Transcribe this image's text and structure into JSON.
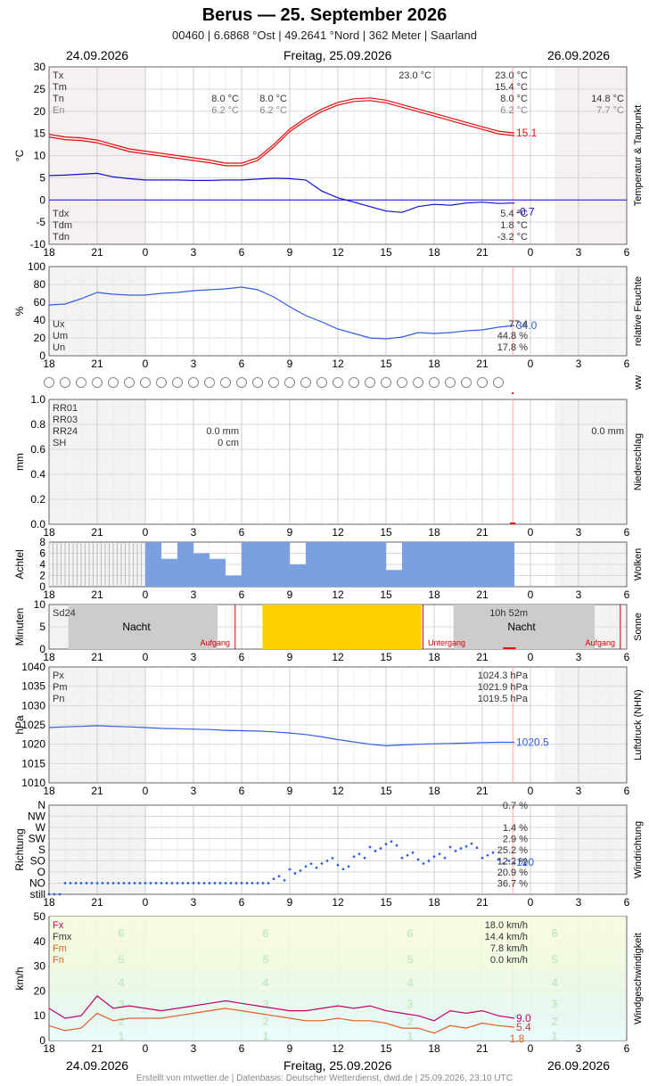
{
  "header": {
    "title": "Berus  —  25. September 2026",
    "subtitle": "00460  |  6.6868 °Ost  |  49.2641 °Nord  |  362 Meter  |  Saarland"
  },
  "dates": {
    "left": "24.09.2026",
    "center": "Freitag, 25.09.2026",
    "right": "26.09.2026"
  },
  "footer": "Erstellt von mtwetter.de | Datenbasis: Deutscher Wetterdienst, dwd.de | 25.09.2026, 23:10 UTC",
  "colors": {
    "temp": "#e01010",
    "dew": "#1010d0",
    "line": "#3060e0",
    "cloud": "#7aa0e0",
    "sun": "#ffd000",
    "fx": "#c0006a",
    "fm": "#e06020",
    "grid": "#dddddd"
  },
  "chart_data": [
    {
      "id": "temperature",
      "type": "line",
      "ylabel": "°C",
      "side_label": "Temperatur & Taupunkt",
      "ylim": [
        -10,
        30
      ],
      "yticks": [
        "30",
        "25",
        "20",
        "15",
        "10",
        "5",
        "0",
        "-5",
        "-10"
      ],
      "xticks": [
        "18",
        "21",
        "0",
        "3",
        "6",
        "9",
        "12",
        "15",
        "18",
        "21",
        "0",
        "3",
        "6"
      ],
      "x_hours": [
        18,
        19,
        20,
        21,
        22,
        23,
        0,
        1,
        2,
        3,
        4,
        5,
        6,
        7,
        8,
        9,
        10,
        11,
        12,
        13,
        14,
        15,
        16,
        17,
        18,
        19,
        20,
        21,
        22,
        23
      ],
      "series": [
        {
          "name": "T",
          "values": [
            14.8,
            14.2,
            14.0,
            13.5,
            12.5,
            11.5,
            11.0,
            10.5,
            10.0,
            9.5,
            9.0,
            8.3,
            8.3,
            9.5,
            12.5,
            16.0,
            18.5,
            20.5,
            22.0,
            22.8,
            23.0,
            22.5,
            21.5,
            20.5,
            19.5,
            18.5,
            17.5,
            16.5,
            15.5,
            15.1
          ]
        },
        {
          "name": "Td",
          "values": [
            5.5,
            5.6,
            5.8,
            6.0,
            5.2,
            4.8,
            4.5,
            4.5,
            4.5,
            4.4,
            4.4,
            4.5,
            4.5,
            4.7,
            4.9,
            4.8,
            4.5,
            2.0,
            0.5,
            -0.5,
            -1.5,
            -2.5,
            -2.8,
            -1.5,
            -1.0,
            -1.2,
            -0.7,
            -0.5,
            -0.8,
            -0.7
          ]
        }
      ],
      "current_labels": [
        "15.1",
        "-0.7"
      ],
      "stats_top": [
        {
          "label": "Tx",
          "v1": "",
          "v2": "",
          "v3": "23.0 °C",
          "v4": "23.0 °C",
          "v5": ""
        },
        {
          "label": "Tm",
          "v1": "",
          "v2": "",
          "v3": "",
          "v4": "15.4 °C",
          "v5": ""
        },
        {
          "label": "Tn",
          "v1": "8.0 °C",
          "v2": "8.0 °C",
          "v3": "",
          "v4": "8.0 °C",
          "v5": "14.8 °C"
        },
        {
          "label": "En",
          "v1": "6.2 °C",
          "v2": "6.2 °C",
          "v3": "",
          "v4": "6.2 °C",
          "v5": "7.7 °C"
        }
      ],
      "stats_bottom": [
        {
          "label": "Tdx",
          "value": "5.4 °C"
        },
        {
          "label": "Tdm",
          "value": "1.8 °C"
        },
        {
          "label": "Tdn",
          "value": "-3.2 °C"
        }
      ]
    },
    {
      "id": "humidity",
      "type": "line",
      "ylabel": "%",
      "side_label": "relative Feuchte",
      "ylim": [
        0,
        100
      ],
      "yticks": [
        "100",
        "80",
        "60",
        "40",
        "20",
        "0"
      ],
      "x_hours": [
        18,
        19,
        20,
        21,
        22,
        23,
        0,
        1,
        2,
        3,
        4,
        5,
        6,
        7,
        8,
        9,
        10,
        11,
        12,
        13,
        14,
        15,
        16,
        17,
        18,
        19,
        20,
        21,
        22,
        23
      ],
      "series": [
        {
          "name": "U",
          "values": [
            57,
            58,
            64,
            71,
            69,
            68,
            68,
            70,
            71,
            73,
            74,
            75,
            77,
            74,
            66,
            55,
            45,
            38,
            30,
            25,
            20,
            19,
            21,
            26,
            25,
            26,
            28,
            29,
            32,
            34
          ]
        }
      ],
      "current_labels": [
        "34.0"
      ],
      "stats": [
        {
          "label": "Ux",
          "value": "77.4"
        },
        {
          "label": "Um",
          "value": "44.8 %"
        },
        {
          "label": "Un",
          "value": "17.8 %"
        }
      ]
    },
    {
      "id": "ww",
      "type": "scatter",
      "side_label": "ww",
      "count": 29
    },
    {
      "id": "precipitation",
      "type": "bar",
      "ylabel": "mm",
      "side_label": "Niederschlag",
      "ylim": [
        0,
        1.0
      ],
      "yticks": [
        "1.0",
        "0.8",
        "0.6",
        "0.4",
        "0.2",
        "0.0"
      ],
      "stats": [
        {
          "label": "RR01",
          "value": ""
        },
        {
          "label": "RR03",
          "value": ""
        },
        {
          "label": "RR24",
          "value": "0.0 mm"
        },
        {
          "label": "SH",
          "value": "0 cm"
        }
      ],
      "right_value": "0.0 mm"
    },
    {
      "id": "clouds",
      "type": "bar",
      "ylabel": "Achtel",
      "side_label": "Wolken",
      "ylim": [
        0,
        8
      ],
      "yticks": [
        "8",
        "6",
        "4",
        "2",
        "0"
      ],
      "x_hours": [
        18,
        19,
        20,
        21,
        22,
        23,
        0,
        1,
        2,
        3,
        4,
        5,
        6,
        7,
        8,
        9,
        10,
        11,
        12,
        13,
        14,
        15,
        16,
        17,
        18,
        19,
        20,
        21,
        22,
        23
      ],
      "values": [
        0,
        0,
        0,
        0,
        0,
        0,
        8,
        5,
        8,
        6,
        5,
        2,
        8,
        8,
        8,
        4,
        8,
        8,
        8,
        8,
        8,
        3,
        8,
        8,
        8,
        8,
        8,
        8,
        8,
        8
      ]
    },
    {
      "id": "sunshine",
      "type": "bar",
      "ylabel": "Minuten",
      "side_label": "Sonne",
      "ylim": [
        0,
        10
      ],
      "yticks": [
        "10",
        "5",
        "0"
      ],
      "sun_start_hour": 7.3,
      "sun_end_hour": 17.2,
      "labels": {
        "sd": "Sd24",
        "night": "Nacht",
        "sunrise": "Aufgang",
        "sunset": "Untergang",
        "duration": "10h 52m"
      }
    },
    {
      "id": "pressure",
      "type": "line",
      "ylabel": "hPa",
      "side_label": "Luftdruck (NHN)",
      "ylim": [
        1010,
        1040
      ],
      "yticks": [
        "1040",
        "1035",
        "1030",
        "1025",
        "1020",
        "1015",
        "1010"
      ],
      "x_hours": [
        18,
        19,
        20,
        21,
        22,
        23,
        0,
        1,
        2,
        3,
        4,
        5,
        6,
        7,
        8,
        9,
        10,
        11,
        12,
        13,
        14,
        15,
        16,
        17,
        18,
        19,
        20,
        21,
        22,
        23
      ],
      "series": [
        {
          "name": "P",
          "values": [
            1024.3,
            1024.5,
            1024.6,
            1024.8,
            1024.6,
            1024.5,
            1024.3,
            1024.1,
            1024.0,
            1023.9,
            1023.8,
            1023.6,
            1023.5,
            1023.4,
            1023.2,
            1022.9,
            1022.5,
            1021.9,
            1021.2,
            1020.6,
            1020.0,
            1019.6,
            1019.8,
            1020.0,
            1020.1,
            1020.2,
            1020.3,
            1020.4,
            1020.5,
            1020.5
          ]
        }
      ],
      "current_labels": [
        "1020.5"
      ],
      "stats": [
        {
          "label": "Px",
          "value": "1024.3 hPa"
        },
        {
          "label": "Pm",
          "value": "1021.9 hPa"
        },
        {
          "label": "Pn",
          "value": "1019.5 hPa"
        }
      ]
    },
    {
      "id": "direction",
      "type": "scatter",
      "ylabel": "Richtung",
      "side_label": "Windrichtung",
      "yticks": [
        "N",
        "NW",
        "W",
        "SW",
        "S",
        "SO",
        "O",
        "NO",
        "still"
      ],
      "x_hours": [
        18,
        19,
        20,
        21,
        22,
        23,
        0,
        1,
        2,
        3,
        4,
        5,
        6,
        7,
        8,
        9,
        10,
        11,
        12,
        13,
        14,
        15,
        16,
        17,
        18,
        19,
        20,
        21,
        22,
        23
      ],
      "values": [
        8,
        7,
        7,
        7,
        7,
        7,
        7,
        7,
        7,
        7,
        7,
        7,
        7,
        7,
        6.5,
        6,
        5.5,
        5,
        5.5,
        4.5,
        4,
        3.5,
        4.5,
        5,
        4.5,
        4,
        3.7,
        4.5,
        5,
        5.1
      ],
      "current_labels": [
        "120"
      ],
      "stats": [
        "0.7 %",
        "",
        "1.4 %",
        "2.9 %",
        "25.2 %",
        "12.2 %",
        "20.9 %",
        "36.7 %"
      ]
    },
    {
      "id": "wind",
      "type": "line",
      "ylabel": "km/h",
      "side_label": "Windgeschwindigkeit",
      "ylim": [
        0,
        50
      ],
      "yticks": [
        "50",
        "40",
        "30",
        "20",
        "10",
        "0"
      ],
      "x_hours": [
        18,
        19,
        20,
        21,
        22,
        23,
        0,
        1,
        2,
        3,
        4,
        5,
        6,
        7,
        8,
        9,
        10,
        11,
        12,
        13,
        14,
        15,
        16,
        17,
        18,
        19,
        20,
        21,
        22,
        23
      ],
      "series": [
        {
          "name": "Fx",
          "values": [
            13,
            9,
            10,
            18,
            13,
            14,
            13,
            12,
            13,
            14,
            15,
            16,
            15,
            14,
            13,
            12,
            12,
            13,
            14,
            13,
            14,
            12,
            11,
            10,
            8,
            12,
            11,
            12,
            10,
            9.0
          ]
        },
        {
          "name": "Fm",
          "values": [
            6,
            4,
            5,
            11,
            8,
            9,
            9,
            9,
            10,
            11,
            12,
            13,
            12,
            11,
            10,
            9,
            8,
            8,
            9,
            8,
            8,
            7,
            5,
            5,
            3,
            6,
            5,
            7,
            6,
            5.4
          ]
        }
      ],
      "current_labels": [
        "9.0",
        "5.4",
        "1.8"
      ],
      "beaufort": [
        "6",
        "5",
        "4",
        "3",
        "2",
        "1"
      ],
      "stats": [
        {
          "label": "Fx",
          "value": "18.0 km/h"
        },
        {
          "label": "Fmx",
          "value": "14.4 km/h"
        },
        {
          "label": "Fm",
          "value": "7.8 km/h"
        },
        {
          "label": "Fn",
          "value": "0.0 km/h"
        }
      ]
    }
  ]
}
